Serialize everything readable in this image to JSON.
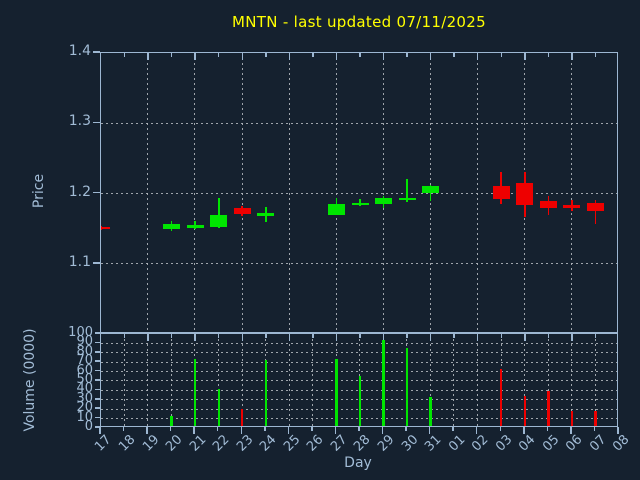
{
  "title": {
    "text": "MNTN - last updated 07/11/2025",
    "color": "#ffff00"
  },
  "colors": {
    "background": "#15212f",
    "axis": "#9db7d2",
    "text": "#a2bcd6",
    "grid": "#b7bcc2",
    "up": "#00e600",
    "down": "#ee0000",
    "title": "#ffff00"
  },
  "chart_data": [
    {
      "type": "candlestick",
      "title": "MNTN - last updated 07/11/2025",
      "xlabel": "Day",
      "ylabel": "Price",
      "ylim": [
        1.0,
        1.4
      ],
      "yticks": [
        1.1,
        1.2,
        1.3,
        1.4
      ],
      "grid": true,
      "legend": "none",
      "categories": [
        "17",
        "18",
        "19",
        "20",
        "21",
        "22",
        "23",
        "24",
        "25",
        "26",
        "27",
        "28",
        "29",
        "30",
        "31",
        "01",
        "02",
        "03",
        "04",
        "05",
        "06",
        "07",
        "08"
      ],
      "candles": [
        {
          "day": "17",
          "open": 1.153,
          "high": 1.154,
          "low": 1.148,
          "close": 1.149
        },
        {
          "day": "20",
          "open": 1.15,
          "high": 1.161,
          "low": 1.147,
          "close": 1.156
        },
        {
          "day": "21",
          "open": 1.152,
          "high": 1.161,
          "low": 1.149,
          "close": 1.155
        },
        {
          "day": "22",
          "open": 1.153,
          "high": 1.194,
          "low": 1.151,
          "close": 1.17
        },
        {
          "day": "23",
          "open": 1.179,
          "high": 1.182,
          "low": 1.168,
          "close": 1.171
        },
        {
          "day": "24",
          "open": 1.169,
          "high": 1.181,
          "low": 1.16,
          "close": 1.172
        },
        {
          "day": "27",
          "open": 1.17,
          "high": 1.193,
          "low": 1.169,
          "close": 1.185
        },
        {
          "day": "28",
          "open": 1.184,
          "high": 1.192,
          "low": 1.182,
          "close": 1.187
        },
        {
          "day": "29",
          "open": 1.185,
          "high": 1.196,
          "low": 1.18,
          "close": 1.194
        },
        {
          "day": "30",
          "open": 1.191,
          "high": 1.22,
          "low": 1.188,
          "close": 1.194
        },
        {
          "day": "31",
          "open": 1.2,
          "high": 1.212,
          "low": 1.19,
          "close": 1.211
        },
        {
          "day": "03",
          "open": 1.211,
          "high": 1.23,
          "low": 1.185,
          "close": 1.192
        },
        {
          "day": "04",
          "open": 1.215,
          "high": 1.231,
          "low": 1.166,
          "close": 1.183
        },
        {
          "day": "05",
          "open": 1.189,
          "high": 1.196,
          "low": 1.17,
          "close": 1.179
        },
        {
          "day": "06",
          "open": 1.183,
          "high": 1.191,
          "low": 1.175,
          "close": 1.179
        },
        {
          "day": "07",
          "open": 1.186,
          "high": 1.191,
          "low": 1.156,
          "close": 1.175
        }
      ]
    },
    {
      "type": "bar",
      "xlabel": "Day",
      "ylabel": "Volume (0000)",
      "ylim": [
        0,
        100
      ],
      "yticks": [
        0,
        10,
        20,
        30,
        40,
        50,
        60,
        70,
        80,
        90,
        100
      ],
      "grid": true,
      "bars": [
        {
          "day": "20",
          "value": 13,
          "dir": "up"
        },
        {
          "day": "21",
          "value": 73,
          "dir": "up"
        },
        {
          "day": "22",
          "value": 42,
          "dir": "up"
        },
        {
          "day": "23",
          "value": 20,
          "dir": "down"
        },
        {
          "day": "24",
          "value": 72,
          "dir": "up"
        },
        {
          "day": "27",
          "value": 73,
          "dir": "up"
        },
        {
          "day": "28",
          "value": 55,
          "dir": "up"
        },
        {
          "day": "29",
          "value": 94,
          "dir": "up"
        },
        {
          "day": "30",
          "value": 85,
          "dir": "up"
        },
        {
          "day": "31",
          "value": 33,
          "dir": "up"
        },
        {
          "day": "03",
          "value": 63,
          "dir": "down"
        },
        {
          "day": "04",
          "value": 34,
          "dir": "down"
        },
        {
          "day": "05",
          "value": 39,
          "dir": "down"
        },
        {
          "day": "06",
          "value": 18,
          "dir": "down"
        },
        {
          "day": "07",
          "value": 18,
          "dir": "down"
        }
      ]
    }
  ]
}
